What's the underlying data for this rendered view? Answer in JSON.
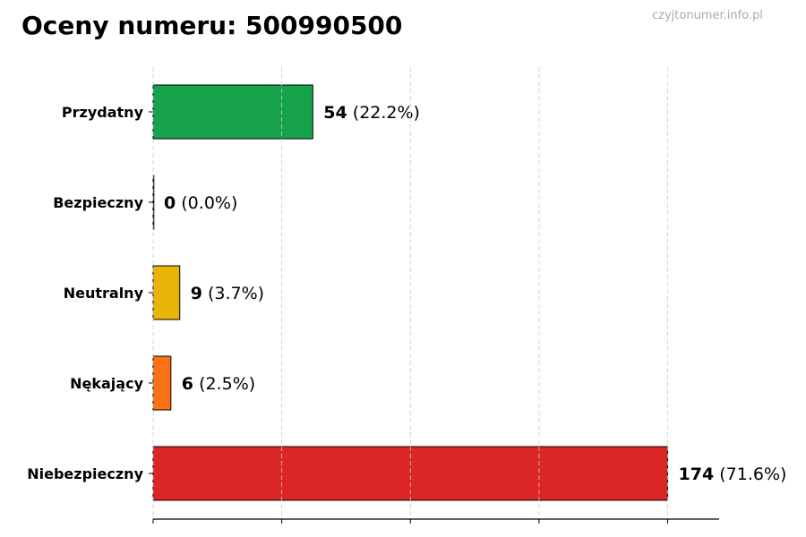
{
  "watermark": "czyjtonumer.info.pl",
  "chart_data": {
    "type": "bar",
    "orientation": "horizontal",
    "title": "Oceny numeru: 500990500",
    "categories": [
      "Przydatny",
      "Bezpieczny",
      "Neutralny",
      "Nękający",
      "Niebezpieczny"
    ],
    "values": [
      54,
      0,
      9,
      6,
      174
    ],
    "percent_labels": [
      "(22.2%)",
      "(0.0%)",
      "(3.7%)",
      "(2.5%)",
      "(71.6%)"
    ],
    "colors": [
      "#16a34a",
      "#6b7280",
      "#eab308",
      "#f97316",
      "#dc2626"
    ],
    "xlim": [
      0,
      191.4
    ],
    "xticks": [
      0,
      43.5,
      87,
      130.5,
      174
    ],
    "grid": "x, dashed",
    "xlabel": "",
    "ylabel": ""
  }
}
